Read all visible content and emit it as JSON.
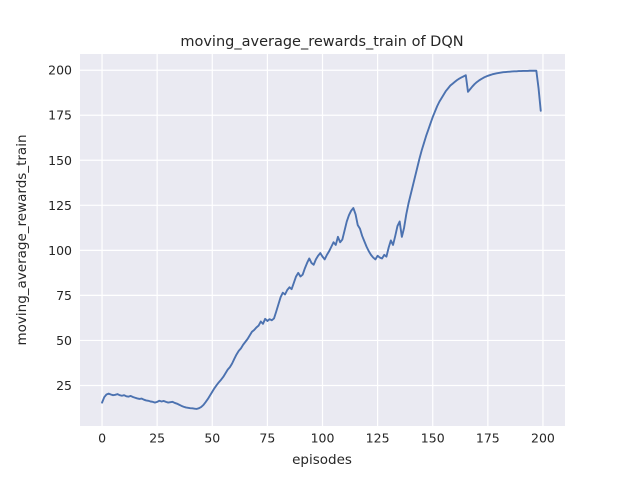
{
  "chart_data": {
    "type": "line",
    "title": "moving_average_rewards_train of DQN",
    "xlabel": "episodes",
    "ylabel": "moving_average_rewards_train",
    "xticks": [
      0,
      25,
      50,
      75,
      100,
      125,
      150,
      175,
      200
    ],
    "yticks": [
      25,
      50,
      75,
      100,
      125,
      150,
      175,
      200
    ],
    "xlim": [
      -10,
      210
    ],
    "ylim": [
      2.5,
      209
    ],
    "grid": true,
    "legend_position": "none",
    "panel_color": "#EAEAF2",
    "grid_color": "#FFFFFF",
    "line_color": "#4C72B0",
    "text_color": "#262626",
    "figure_background": "#FFFFFF",
    "series": [
      {
        "name": "moving_average_rewards_train",
        "points": [
          [
            0,
            15.5
          ],
          [
            1,
            18.5
          ],
          [
            2,
            20
          ],
          [
            3,
            20.5
          ],
          [
            4,
            20
          ],
          [
            5,
            19.6
          ],
          [
            6,
            19.8
          ],
          [
            7,
            20.2
          ],
          [
            8,
            19.6
          ],
          [
            9,
            19.3
          ],
          [
            10,
            19.6
          ],
          [
            11,
            19
          ],
          [
            12,
            18.8
          ],
          [
            13,
            19.2
          ],
          [
            14,
            18.6
          ],
          [
            15,
            18.2
          ],
          [
            16,
            17.8
          ],
          [
            17,
            17.5
          ],
          [
            18,
            17.7
          ],
          [
            19,
            17.1
          ],
          [
            20,
            16.7
          ],
          [
            21,
            16.5
          ],
          [
            22,
            16.1
          ],
          [
            23,
            15.9
          ],
          [
            24,
            15.5
          ],
          [
            25,
            15.9
          ],
          [
            26,
            16.5
          ],
          [
            27,
            16.1
          ],
          [
            28,
            16.4
          ],
          [
            29,
            15.9
          ],
          [
            30,
            15.5
          ],
          [
            31,
            15.7
          ],
          [
            32,
            15.9
          ],
          [
            33,
            15.3
          ],
          [
            34,
            14.9
          ],
          [
            35,
            14.3
          ],
          [
            36,
            13.7
          ],
          [
            37,
            13.2
          ],
          [
            38,
            12.8
          ],
          [
            39,
            12.6
          ],
          [
            40,
            12.4
          ],
          [
            41,
            12.3
          ],
          [
            42,
            12.1
          ],
          [
            43,
            12
          ],
          [
            44,
            12.4
          ],
          [
            45,
            13.1
          ],
          [
            46,
            14.2
          ],
          [
            47,
            15.8
          ],
          [
            48,
            17.5
          ],
          [
            49,
            19.5
          ],
          [
            50,
            21.5
          ],
          [
            51,
            23.5
          ],
          [
            52,
            25.2
          ],
          [
            53,
            26.8
          ],
          [
            54,
            28.2
          ],
          [
            55,
            29.8
          ],
          [
            56,
            31.8
          ],
          [
            57,
            33.8
          ],
          [
            58,
            35.2
          ],
          [
            59,
            37.2
          ],
          [
            60,
            39.8
          ],
          [
            61,
            42.2
          ],
          [
            62,
            44.2
          ],
          [
            63,
            45.6
          ],
          [
            64,
            47.6
          ],
          [
            65,
            49.2
          ],
          [
            66,
            50.8
          ],
          [
            67,
            52.8
          ],
          [
            68,
            54.8
          ],
          [
            69,
            55.8
          ],
          [
            70,
            57.2
          ],
          [
            71,
            58.2
          ],
          [
            72,
            60.5
          ],
          [
            73,
            59.2
          ],
          [
            74,
            62
          ],
          [
            75,
            60.8
          ],
          [
            76,
            61.8
          ],
          [
            77,
            61.2
          ],
          [
            78,
            62.2
          ],
          [
            79,
            66
          ],
          [
            80,
            70
          ],
          [
            81,
            74
          ],
          [
            82,
            76.5
          ],
          [
            83,
            75.5
          ],
          [
            84,
            78
          ],
          [
            85,
            79.5
          ],
          [
            86,
            78.5
          ],
          [
            87,
            82
          ],
          [
            88,
            85.5
          ],
          [
            89,
            87.5
          ],
          [
            90,
            85.5
          ],
          [
            91,
            86.5
          ],
          [
            92,
            90
          ],
          [
            93,
            93
          ],
          [
            94,
            95.5
          ],
          [
            95,
            93
          ],
          [
            96,
            92
          ],
          [
            97,
            95
          ],
          [
            98,
            97
          ],
          [
            99,
            98.5
          ],
          [
            100,
            96.5
          ],
          [
            101,
            95
          ],
          [
            102,
            97.5
          ],
          [
            103,
            99.5
          ],
          [
            104,
            102
          ],
          [
            105,
            104.5
          ],
          [
            106,
            103
          ],
          [
            107,
            107.5
          ],
          [
            108,
            104.5
          ],
          [
            109,
            106
          ],
          [
            110,
            111
          ],
          [
            111,
            116
          ],
          [
            112,
            119.5
          ],
          [
            113,
            122
          ],
          [
            114,
            123.5
          ],
          [
            115,
            120
          ],
          [
            116,
            114
          ],
          [
            117,
            112
          ],
          [
            118,
            108
          ],
          [
            119,
            105
          ],
          [
            120,
            102
          ],
          [
            121,
            99.5
          ],
          [
            122,
            97.5
          ],
          [
            123,
            96
          ],
          [
            124,
            95
          ],
          [
            125,
            97
          ],
          [
            126,
            96
          ],
          [
            127,
            95.5
          ],
          [
            128,
            97.5
          ],
          [
            129,
            96.5
          ],
          [
            130,
            101.5
          ],
          [
            131,
            105.5
          ],
          [
            132,
            103
          ],
          [
            133,
            108
          ],
          [
            134,
            113.5
          ],
          [
            135,
            116
          ],
          [
            136,
            107.5
          ],
          [
            137,
            112.5
          ],
          [
            138,
            120
          ],
          [
            139,
            126
          ],
          [
            140,
            131
          ],
          [
            141,
            136
          ],
          [
            142,
            141
          ],
          [
            143,
            146
          ],
          [
            144,
            151
          ],
          [
            145,
            155.5
          ],
          [
            146,
            159.5
          ],
          [
            147,
            163.5
          ],
          [
            148,
            167
          ],
          [
            149,
            170.5
          ],
          [
            150,
            174
          ],
          [
            151,
            177
          ],
          [
            152,
            180
          ],
          [
            153,
            182.5
          ],
          [
            154,
            184.5
          ],
          [
            155,
            186.5
          ],
          [
            156,
            188.5
          ],
          [
            157,
            190
          ],
          [
            158,
            191.5
          ],
          [
            159,
            192.5
          ],
          [
            160,
            193.5
          ],
          [
            161,
            194.5
          ],
          [
            162,
            195.3
          ],
          [
            163,
            196
          ],
          [
            164,
            196.6
          ],
          [
            165,
            197.2
          ],
          [
            166,
            188
          ],
          [
            167,
            189.5
          ],
          [
            168,
            191
          ],
          [
            169,
            192.3
          ],
          [
            170,
            193.4
          ],
          [
            171,
            194.3
          ],
          [
            172,
            195.1
          ],
          [
            173,
            195.8
          ],
          [
            174,
            196.4
          ],
          [
            175,
            196.9
          ],
          [
            176,
            197.3
          ],
          [
            177,
            197.7
          ],
          [
            178,
            198
          ],
          [
            179,
            198.3
          ],
          [
            180,
            198.5
          ],
          [
            181,
            198.7
          ],
          [
            182,
            198.9
          ],
          [
            183,
            199
          ],
          [
            184,
            199.1
          ],
          [
            185,
            199.2
          ],
          [
            186,
            199.3
          ],
          [
            187,
            199.4
          ],
          [
            188,
            199.4
          ],
          [
            189,
            199.5
          ],
          [
            190,
            199.5
          ],
          [
            191,
            199.6
          ],
          [
            192,
            199.6
          ],
          [
            193,
            199.6
          ],
          [
            194,
            199.7
          ],
          [
            195,
            199.7
          ],
          [
            196,
            199.7
          ],
          [
            197,
            199.7
          ],
          [
            198,
            190
          ],
          [
            199,
            177.5
          ]
        ]
      }
    ]
  }
}
